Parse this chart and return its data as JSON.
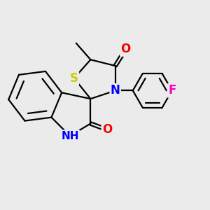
{
  "background_color": "#ebebeb",
  "line_color": "#000000",
  "bond_width": 1.6,
  "atoms": {
    "S": {
      "color": "#cccc00",
      "fontsize": 12,
      "fontweight": "bold"
    },
    "N": {
      "color": "#0000ff",
      "fontsize": 12,
      "fontweight": "bold"
    },
    "O": {
      "color": "#ff0000",
      "fontsize": 12,
      "fontweight": "bold"
    },
    "F": {
      "color": "#ff00cc",
      "fontsize": 12,
      "fontweight": "bold"
    },
    "NH": {
      "color": "#0000ff",
      "fontsize": 11,
      "fontweight": "bold"
    }
  },
  "figsize": [
    3.0,
    3.0
  ],
  "dpi": 100
}
